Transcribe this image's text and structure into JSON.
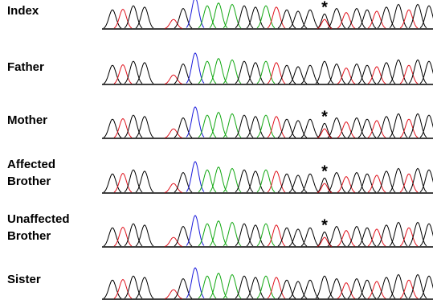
{
  "rows": [
    {
      "label": "Index",
      "marker": "*"
    },
    {
      "label": "Father"
    },
    {
      "label": "Mother",
      "marker": "*"
    },
    {
      "label": "Affected Brother",
      "marker": "*"
    },
    {
      "label": "Unaffected Brother",
      "marker": "*"
    },
    {
      "label": "Sister"
    }
  ]
}
